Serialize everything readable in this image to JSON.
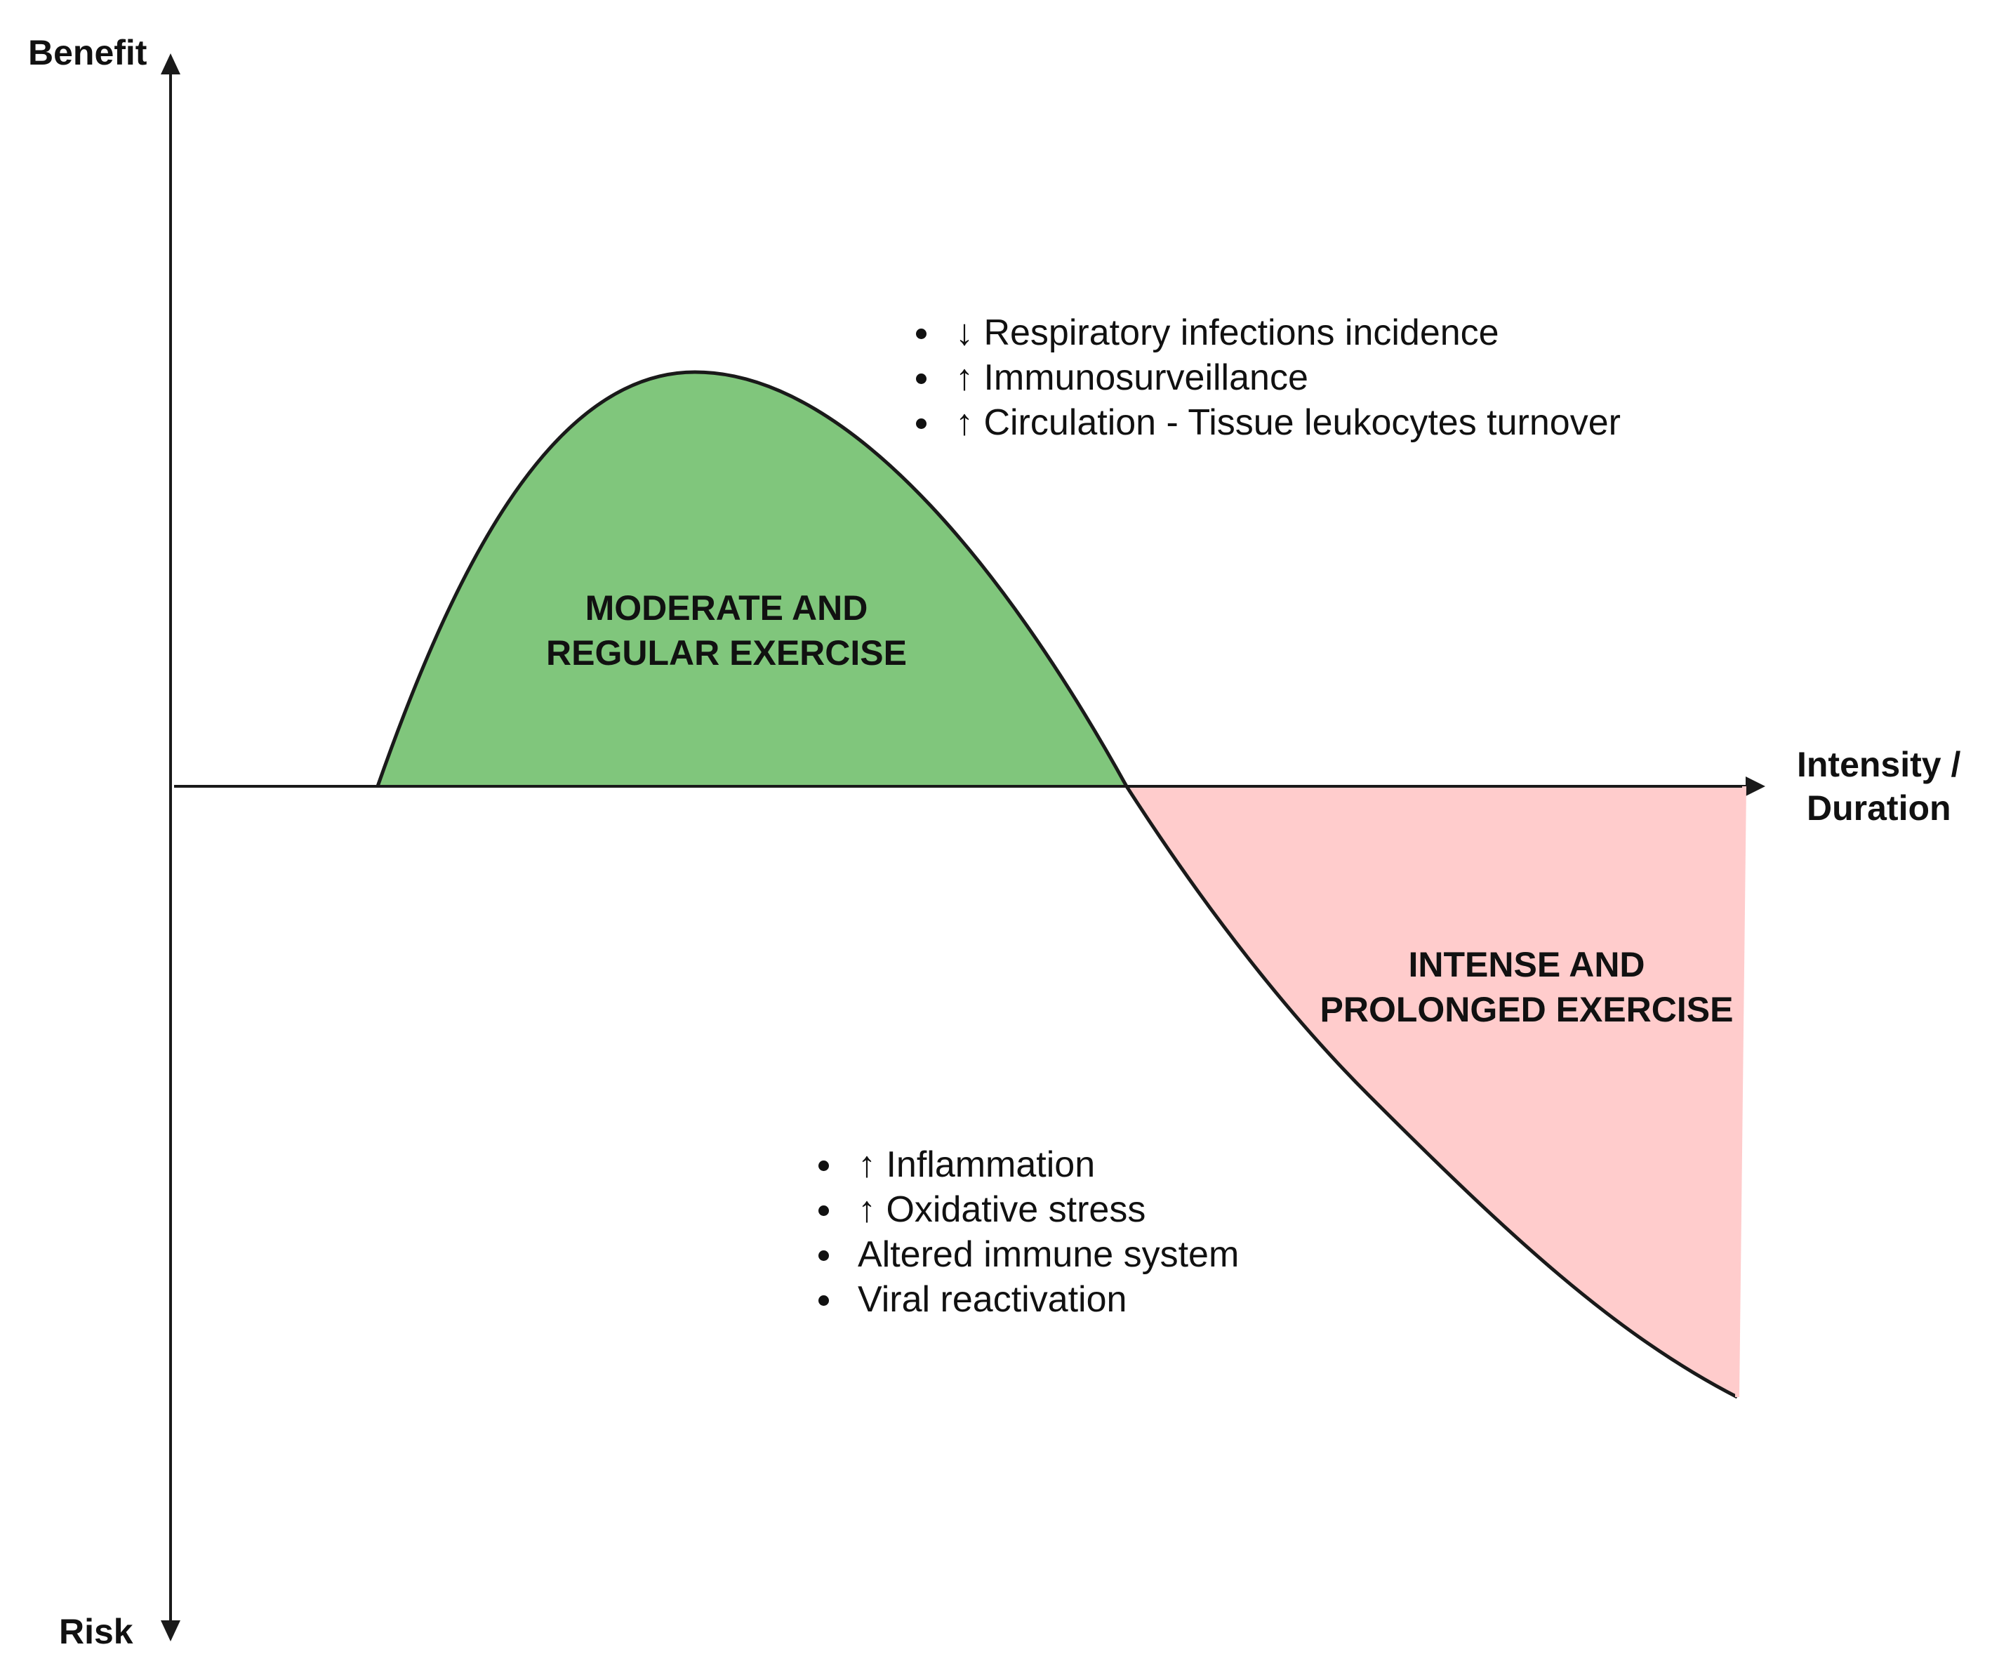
{
  "axes": {
    "y_top_label": "Benefit",
    "y_bottom_label": "Risk",
    "x_label_line1": "Intensity /",
    "x_label_line2": "Duration"
  },
  "regions": {
    "benefit": {
      "label_line1": "MODERATE AND",
      "label_line2": "REGULAR EXERCISE",
      "fill_color": "#80c67c"
    },
    "risk": {
      "label_line1": "INTENSE AND",
      "label_line2": "PROLONGED EXERCISE",
      "fill_color": "#ffcccc"
    }
  },
  "benefit_points": [
    "↓ Respiratory infections incidence",
    "↑ Immunosurveillance",
    "↑ Circulation - Tissue leukocytes turnover"
  ],
  "risk_points": [
    "↑ Inflammation",
    "↑ Oxidative stress",
    "Altered immune system",
    "Viral reactivation"
  ],
  "colors": {
    "curve": "#1a1a1a",
    "axis": "#1a1a1a"
  }
}
